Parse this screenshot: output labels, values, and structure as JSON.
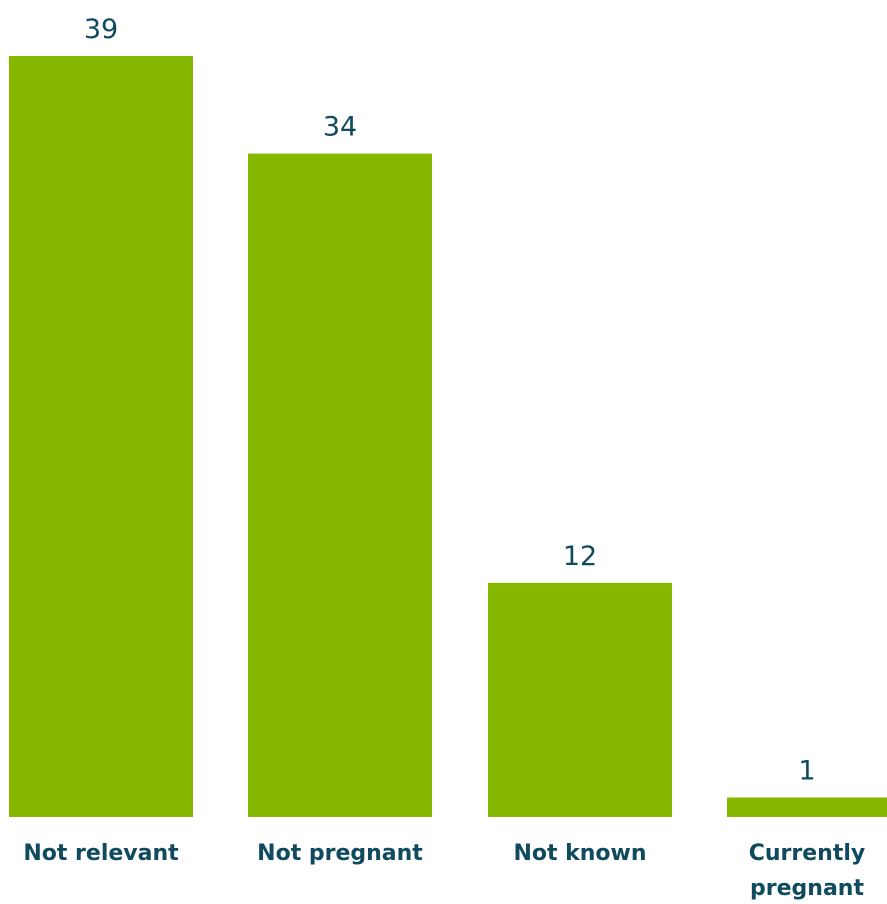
{
  "chart_data": {
    "type": "bar",
    "categories": [
      [
        "Not relevant"
      ],
      [
        "Not pregnant"
      ],
      [
        "Not known"
      ],
      [
        "Currently",
        "pregnant"
      ]
    ],
    "values": [
      39,
      34,
      12,
      1
    ],
    "value_labels": [
      "39",
      "34",
      "12",
      "1"
    ],
    "title": "",
    "xlabel": "",
    "ylabel": "",
    "ylim": [
      0,
      39
    ],
    "grid": false,
    "legend": "none",
    "bar_color": "#86b800",
    "text_color": "#0f4a5e"
  }
}
